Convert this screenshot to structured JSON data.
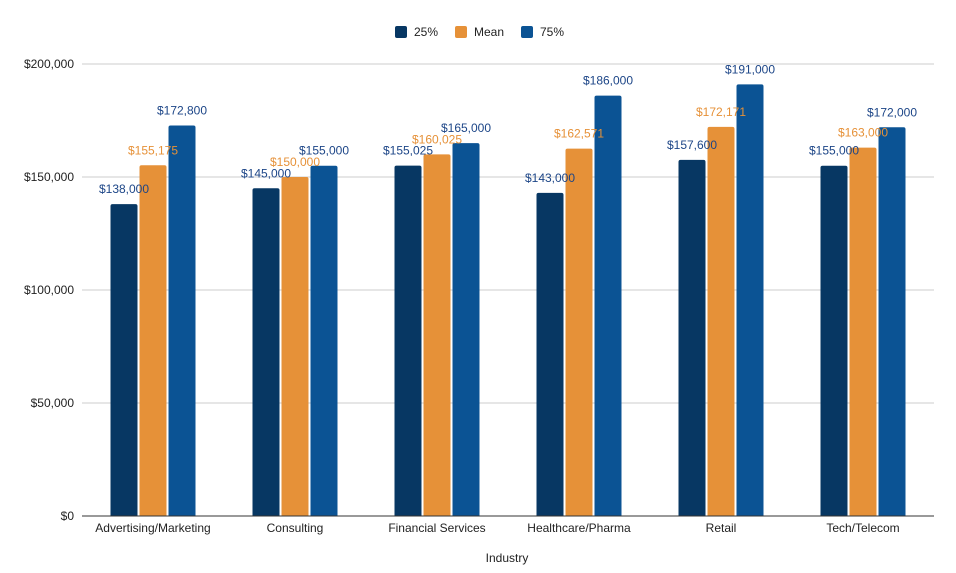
{
  "chart_data": {
    "type": "bar",
    "title": "",
    "xlabel": "Industry",
    "ylabel": "",
    "categories": [
      "Advertising/Marketing",
      "Consulting",
      "Financial Services",
      "Healthcare/Pharma",
      "Retail",
      "Tech/Telecom"
    ],
    "series": [
      {
        "name": "25%",
        "color": "#073763",
        "values": [
          138000,
          145000,
          155025,
          143000,
          157600,
          155000
        ],
        "labels": [
          "$138,000",
          "$145,000",
          "$155,025",
          "$143,000",
          "$157,600",
          "$155,000"
        ]
      },
      {
        "name": "Mean",
        "color": "#e69138",
        "values": [
          155175,
          150000,
          160025,
          162571,
          172171,
          163000
        ],
        "labels": [
          "$155,175",
          "$150,000",
          "$160,025",
          "$162,571",
          "$172,171",
          "$163,000"
        ]
      },
      {
        "name": "75%",
        "color": "#0b5394",
        "values": [
          172800,
          155000,
          165000,
          186000,
          191000,
          172000
        ],
        "labels": [
          "$172,800",
          "$155,000",
          "$165,000",
          "$186,000",
          "$191,000",
          "$172,000"
        ]
      }
    ],
    "ylim": [
      0,
      200000
    ],
    "yticks": [
      0,
      50000,
      100000,
      150000,
      200000
    ],
    "ytick_labels": [
      "$0",
      "$50,000",
      "$100,000",
      "$150,000",
      "$200,000"
    ],
    "grid": true,
    "legend_position": "top-center",
    "label_color_dark": "#1c4587"
  }
}
